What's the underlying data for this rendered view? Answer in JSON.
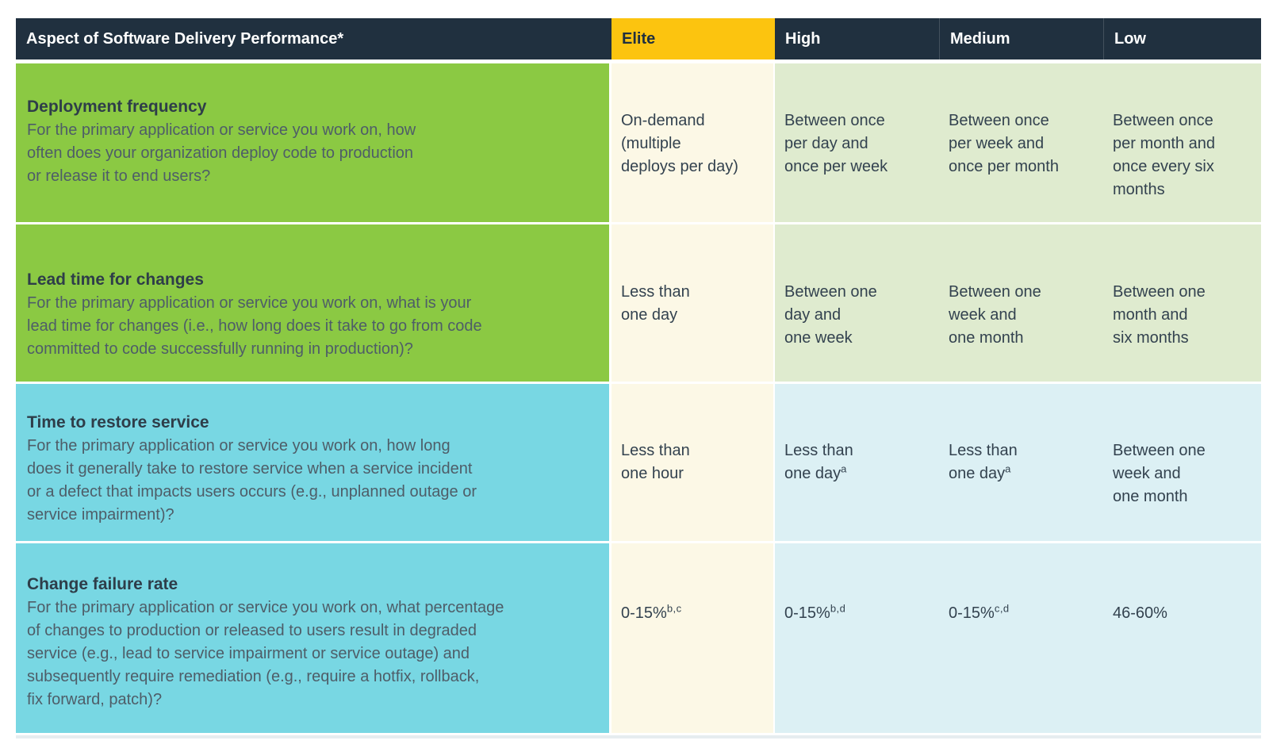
{
  "table": {
    "header": {
      "aspect": "Aspect of Software Delivery Performance*",
      "levels": {
        "elite": "Elite",
        "high": "High",
        "medium": "Medium",
        "low": "Low"
      }
    },
    "rows": [
      {
        "title": "Deployment frequency",
        "description": "For the primary application or service you work on, how\noften does your organization deploy code to production\nor release it to end users?",
        "theme": "green",
        "cells": [
          {
            "text": "On-demand\n(multiple\ndeploys per day)",
            "sup": ""
          },
          {
            "text": "Between once\nper day and\nonce per week",
            "sup": ""
          },
          {
            "text": "Between once\nper week and\nonce per month",
            "sup": ""
          },
          {
            "text": "Between once\nper month and\nonce every six\nmonths",
            "sup": ""
          }
        ]
      },
      {
        "title": "Lead time for changes",
        "description": "For the primary application or service you work on, what is your\nlead time for changes (i.e., how long does it take to go from code\ncommitted to code successfully running in production)?",
        "theme": "green",
        "cells": [
          {
            "text": "Less than\none day",
            "sup": ""
          },
          {
            "text": "Between one\nday and\none week",
            "sup": ""
          },
          {
            "text": "Between one\nweek and\none month",
            "sup": ""
          },
          {
            "text": "Between one\nmonth and\nsix months",
            "sup": ""
          }
        ]
      },
      {
        "title": "Time to restore service",
        "description": "For the primary application or service you work on, how long\ndoes it generally take to restore service when a service incident\nor a defect that impacts users occurs (e.g., unplanned outage or\nservice impairment)?",
        "theme": "cyan",
        "cells": [
          {
            "text": "Less than\none hour",
            "sup": ""
          },
          {
            "text": "Less than\none day",
            "sup": "a"
          },
          {
            "text": "Less than\none day",
            "sup": "a"
          },
          {
            "text": "Between one\nweek and\none month",
            "sup": ""
          }
        ]
      },
      {
        "title": "Change failure rate",
        "description": "For the primary application or service you work on, what percentage\nof changes to production or released to users result in degraded\nservice (e.g., lead to service impairment or service outage) and\nsubsequently require remediation (e.g., require a hotfix, rollback,\nfix forward, patch)?",
        "theme": "cyan",
        "cells": [
          {
            "text": "0-15%",
            "sup": "b,c"
          },
          {
            "text": "0-15%",
            "sup": "b,d"
          },
          {
            "text": "0-15%",
            "sup": "c,d"
          },
          {
            "text": "46-60%",
            "sup": ""
          }
        ]
      }
    ],
    "colors": {
      "header_bg": "#20303f",
      "header_text": "#ffffff",
      "elite_header_bg": "#fcc40f",
      "elite_cell_bg": "#fcf8e6",
      "green_aspect_bg": "#8bc943",
      "green_cell_bg": "#dfebcf",
      "cyan_aspect_bg": "#78d7e3",
      "cyan_cell_bg": "#dcf0f4",
      "title_text": "#2e3d49",
      "body_text": "#4e5d68",
      "value_text": "#33424f"
    }
  }
}
